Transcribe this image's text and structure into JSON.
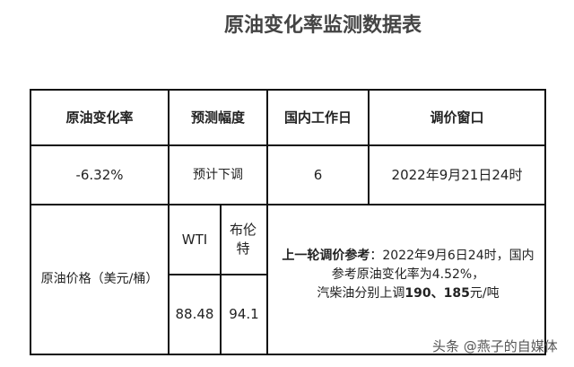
{
  "title": "原油变化率监测数据表",
  "headers": [
    "原油变化率",
    "预测幅度",
    "国内工作日",
    "调价窗口"
  ],
  "row1": [
    "-6.32%",
    "预计下调",
    "6",
    "2022年9月21日24时"
  ],
  "price": {
    "label": "原油价格（美元/桶）",
    "wti_label": "WTI",
    "brent_label": "布伦特",
    "wti": "88.48",
    "brent": "94.1"
  },
  "reference": {
    "bold_label": "上一轮调价参考",
    "line1": "：2022年9月6日24时，国内",
    "line2": "参考原油变化率为4.52%，",
    "line3_pre": "汽柴油分别上调",
    "line3_bold": "190、185",
    "line3_post": "元/吨"
  },
  "watermark": "头条 @燕子的自媒体"
}
